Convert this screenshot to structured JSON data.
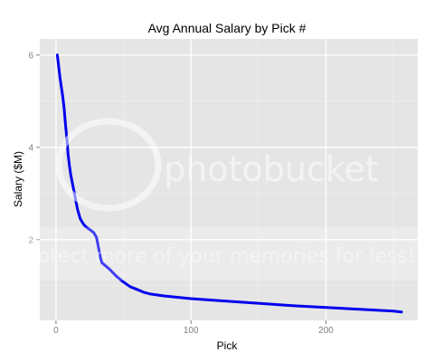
{
  "chart_data": {
    "type": "line",
    "title": "Avg Annual Salary by Pick #",
    "xlabel": "Pick",
    "ylabel": "Salary ($M)",
    "xlim": [
      -12,
      268
    ],
    "ylim": [
      0.25,
      6.35
    ],
    "x_ticks": [
      0,
      100,
      200
    ],
    "y_ticks": [
      2,
      4,
      6
    ],
    "grid": true,
    "legend": "none",
    "series": [
      {
        "color": "#0000ee",
        "points": [
          [
            1,
            6.0
          ],
          [
            2,
            5.75
          ],
          [
            3,
            5.5
          ],
          [
            4,
            5.3
          ],
          [
            5,
            5.1
          ],
          [
            6,
            4.85
          ],
          [
            7,
            4.5
          ],
          [
            8,
            4.2
          ],
          [
            9,
            3.85
          ],
          [
            10,
            3.6
          ],
          [
            11,
            3.4
          ],
          [
            12,
            3.25
          ],
          [
            13,
            3.1
          ],
          [
            14,
            2.95
          ],
          [
            15,
            2.8
          ],
          [
            16,
            2.65
          ],
          [
            17,
            2.55
          ],
          [
            18,
            2.45
          ],
          [
            20,
            2.35
          ],
          [
            22,
            2.28
          ],
          [
            25,
            2.22
          ],
          [
            28,
            2.15
          ],
          [
            30,
            2.05
          ],
          [
            31,
            1.9
          ],
          [
            32,
            1.75
          ],
          [
            33,
            1.6
          ],
          [
            34,
            1.5
          ],
          [
            36,
            1.45
          ],
          [
            40,
            1.35
          ],
          [
            45,
            1.2
          ],
          [
            50,
            1.08
          ],
          [
            55,
            0.98
          ],
          [
            60,
            0.92
          ],
          [
            65,
            0.86
          ],
          [
            70,
            0.82
          ],
          [
            80,
            0.78
          ],
          [
            90,
            0.75
          ],
          [
            100,
            0.72
          ],
          [
            125,
            0.67
          ],
          [
            150,
            0.62
          ],
          [
            175,
            0.57
          ],
          [
            200,
            0.53
          ],
          [
            225,
            0.49
          ],
          [
            250,
            0.45
          ],
          [
            256,
            0.43
          ]
        ]
      }
    ]
  },
  "watermark": {
    "brand": "photobucket",
    "banner": "Protect more of your memories for less!"
  }
}
